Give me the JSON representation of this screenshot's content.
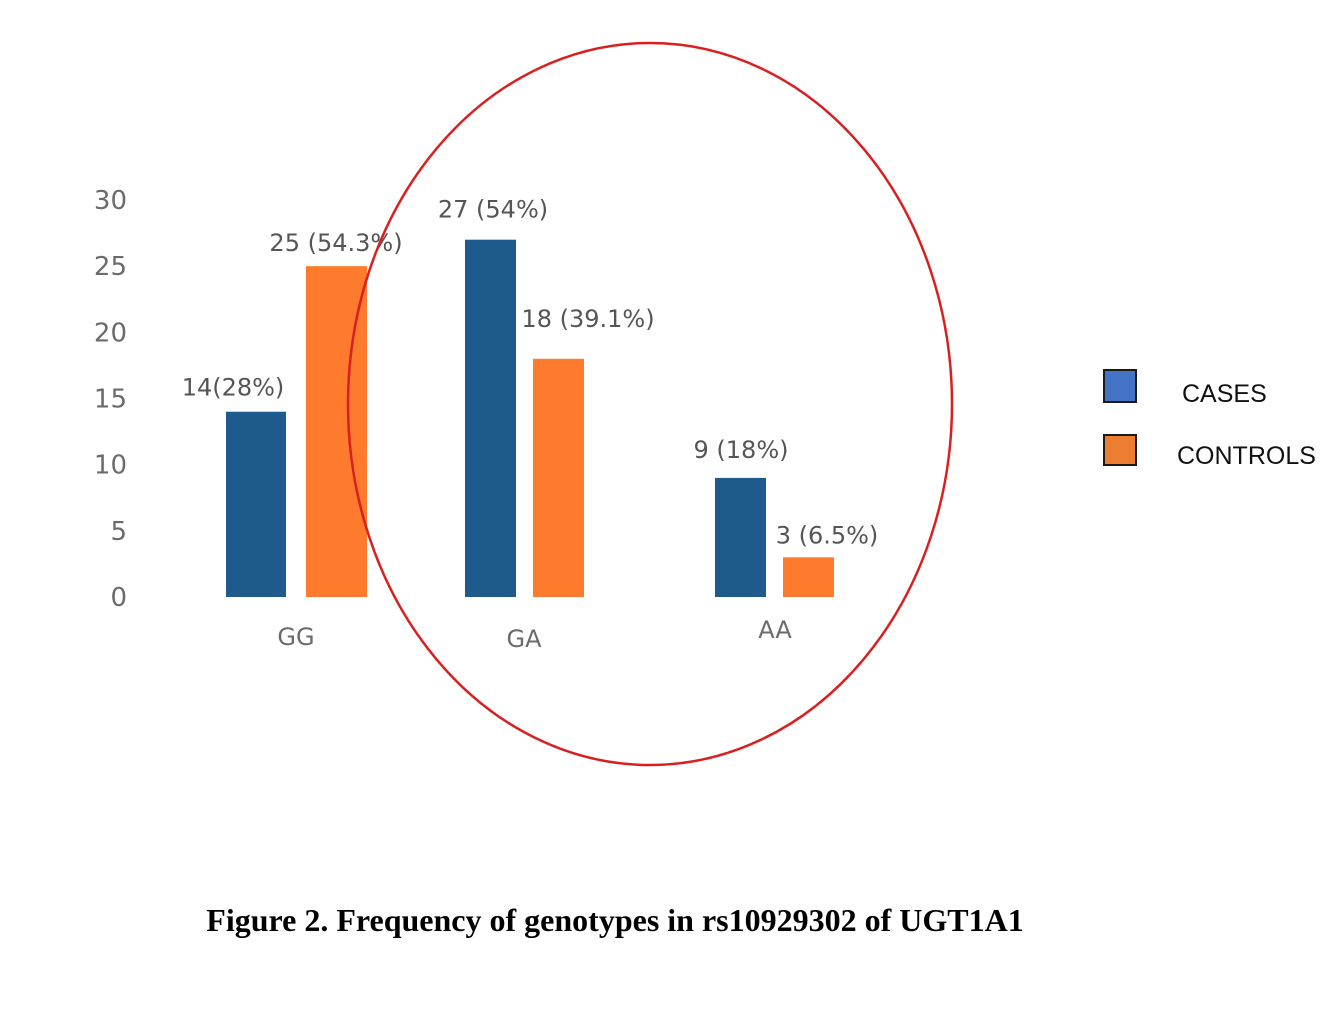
{
  "chart_data": {
    "type": "bar",
    "categories": [
      "GG",
      "GA",
      "AA"
    ],
    "series": [
      {
        "name": "CASES",
        "values": [
          14,
          27,
          9
        ],
        "labels": [
          "14(28%)",
          "27 (54%)",
          "9 (18%)"
        ],
        "color": "#1f5a8c",
        "legend_color": "#4472c4"
      },
      {
        "name": "CONTROLS",
        "values": [
          25,
          18,
          3
        ],
        "labels": [
          "25 (54.3%)",
          "18 (39.1%)",
          "3 (6.5%)"
        ],
        "color": "#fe7a2c",
        "legend_color": "#ed7d31"
      }
    ],
    "yticks": [
      0,
      5,
      10,
      15,
      20,
      25,
      30
    ],
    "ylim": [
      0,
      30
    ],
    "grid": false,
    "legend_position": "right",
    "highlight_color": "#d92020",
    "title": "",
    "xlabel": "",
    "ylabel": ""
  },
  "caption": "Figure 2.  Frequency of genotypes in rs10929302 of UGT1A1"
}
